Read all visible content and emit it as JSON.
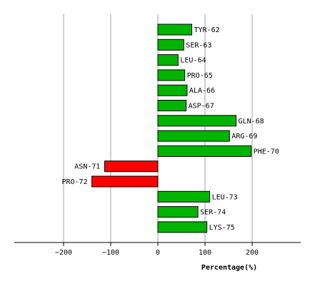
{
  "chart_data": {
    "type": "bar",
    "orientation": "horizontal",
    "xlabel": "Percentage(%)",
    "xlim": [
      -300,
      300
    ],
    "xticks": [
      -200,
      -100,
      0,
      100,
      200
    ],
    "xtick_labels": [
      "−200",
      "−100",
      "0",
      "100",
      "200"
    ],
    "grid": true,
    "colors": {
      "positive": "#00b400",
      "negative": "#ff0000",
      "grid": "#a0a0a0"
    },
    "categories": [
      "TYR-62",
      "SER-63",
      "LEU-64",
      "PRO-65",
      "ALA-66",
      "ASP-67",
      "GLN-68",
      "ARG-69",
      "PHE-70",
      "ASN-71",
      "PRO-72",
      "LEU-73",
      "SER-74",
      "LYS-75"
    ],
    "values": [
      72,
      55,
      43,
      57,
      62,
      60,
      166,
      152,
      198,
      -113,
      -140,
      110,
      85,
      104
    ]
  }
}
